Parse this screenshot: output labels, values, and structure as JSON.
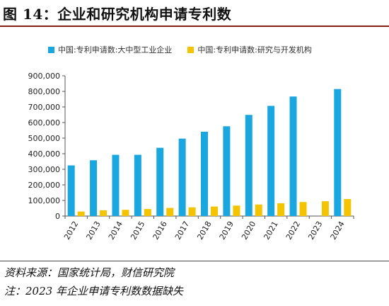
{
  "title": "图 14：企业和研究机构申请专利数",
  "chart_data": {
    "type": "bar",
    "categories": [
      "2012",
      "2013",
      "2014",
      "2015",
      "2016",
      "2017",
      "2018",
      "2019",
      "2020",
      "2021",
      "2022",
      "2023",
      "2024"
    ],
    "series": [
      {
        "name": "中国:专利申请数:大中型工业企业",
        "color": "#1aa7e0",
        "values": [
          325000,
          358000,
          393000,
          393000,
          438000,
          497000,
          541000,
          576000,
          649000,
          707000,
          767000,
          null,
          815000
        ]
      },
      {
        "name": "中国:专利申请数:研究与开发机构",
        "color": "#f5c400",
        "values": [
          29000,
          37000,
          40000,
          45000,
          52000,
          56000,
          61000,
          67000,
          74000,
          82000,
          90000,
          95000,
          109000
        ]
      }
    ],
    "ylim": [
      0,
      900000
    ],
    "yticks": [
      "0",
      "100,000",
      "200,000",
      "300,000",
      "400,000",
      "500,000",
      "600,000",
      "700,000",
      "800,000",
      "900,000"
    ],
    "grid": false,
    "legend_position": "top"
  },
  "notes": {
    "source": "资料来源：国家统计局，财信研究院",
    "remark": "注：2023 年企业申请专利数数据缺失"
  }
}
